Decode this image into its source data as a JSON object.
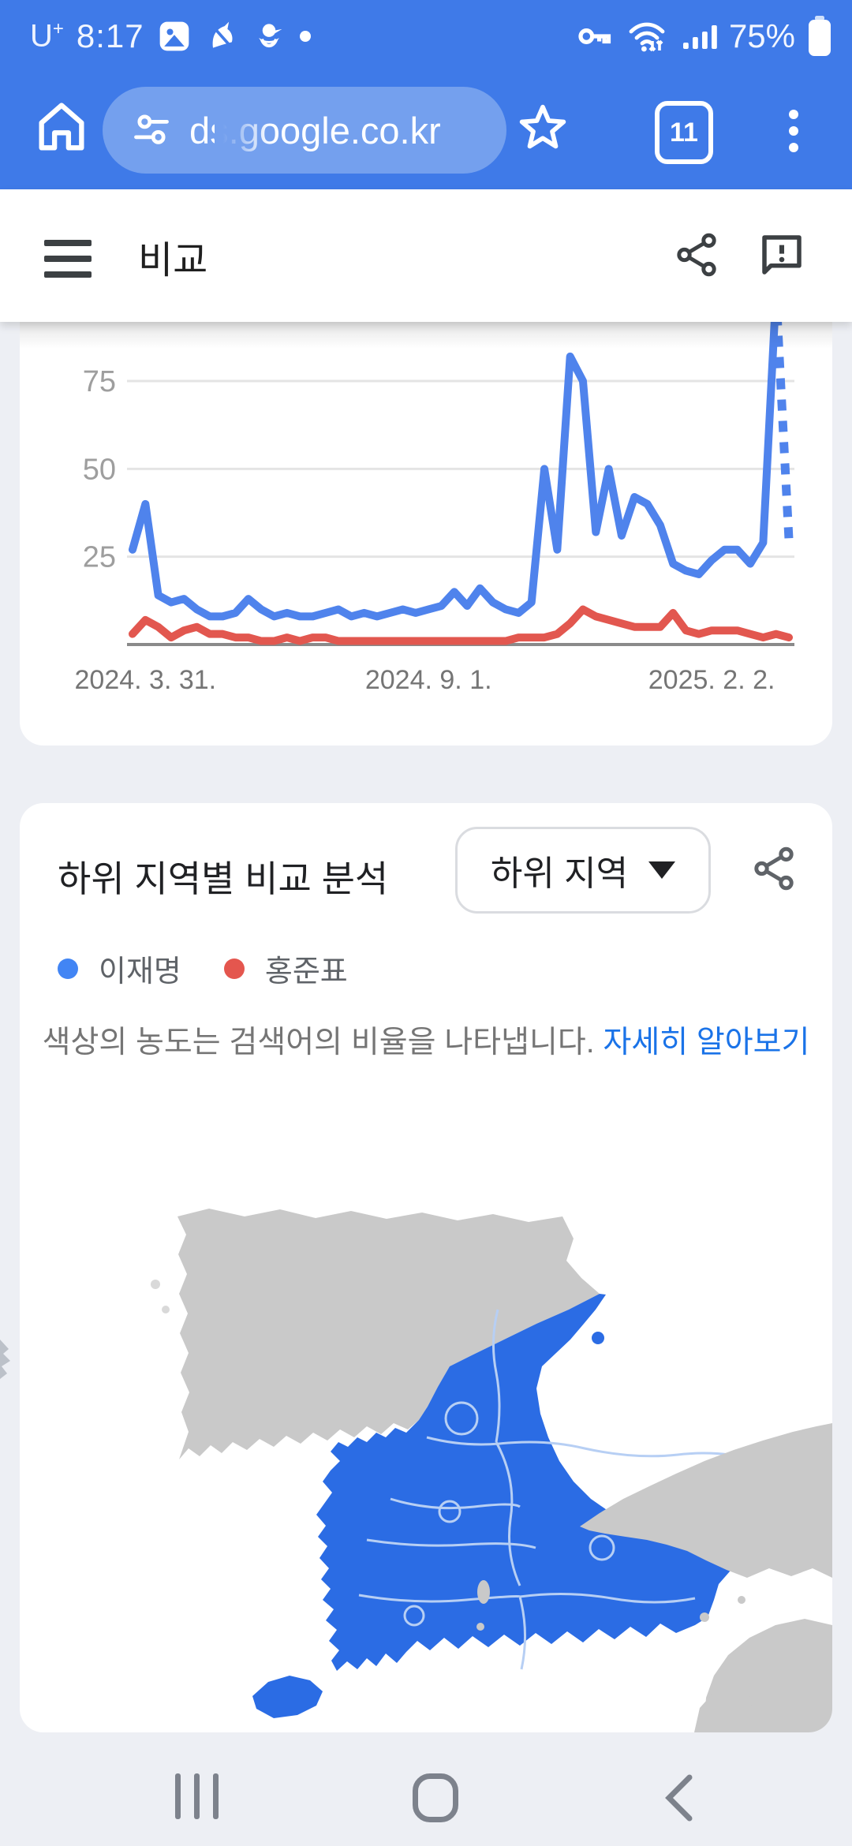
{
  "status_bar": {
    "carrier": "U+",
    "time": "8:17",
    "battery_percent": "75%",
    "left_icons": [
      "gallery-icon",
      "unicorn-icon",
      "duck-icon",
      "notification-dot"
    ],
    "right_icons": [
      "key-icon",
      "wifi-icon",
      "signal-icon",
      "battery-icon"
    ]
  },
  "browser": {
    "url_visible": "ds.google.co.kr",
    "tab_count": "11",
    "toolbar_color": "#3f7ae8",
    "pill_color": "#74a0ee"
  },
  "page_header": {
    "title": "비교"
  },
  "chart_data": {
    "type": "line",
    "x_unit": "week",
    "x_start_label": "2024. 3. 31.",
    "x_tick_labels": [
      {
        "label": "2024. 3. 31.",
        "index": 1
      },
      {
        "label": "2024. 9. 1.",
        "index": 23
      },
      {
        "label": "2025. 2. 2.",
        "index": 45
      }
    ],
    "ylim": [
      0,
      100
    ],
    "yticks": [
      25,
      50,
      75
    ],
    "grid": true,
    "note": "final data point partial - drawn dashed",
    "series": [
      {
        "name": "이재명",
        "color": "#4f83ec",
        "last_segment_dashed": true,
        "values": [
          27,
          40,
          14,
          12,
          13,
          10,
          8,
          8,
          9,
          13,
          10,
          8,
          9,
          8,
          8,
          9,
          10,
          8,
          9,
          8,
          9,
          10,
          9,
          10,
          11,
          15,
          11,
          16,
          12,
          10,
          9,
          12,
          50,
          27,
          82,
          75,
          32,
          50,
          31,
          42,
          40,
          34,
          23,
          21,
          20,
          24,
          27,
          27,
          23,
          29,
          100,
          30
        ]
      },
      {
        "name": "홍준표",
        "color": "#e2574f",
        "last_segment_dashed": false,
        "values": [
          3,
          7,
          5,
          2,
          4,
          5,
          3,
          3,
          2,
          2,
          1,
          1,
          2,
          1,
          2,
          2,
          1,
          1,
          1,
          1,
          1,
          1,
          1,
          1,
          1,
          1,
          1,
          1,
          1,
          1,
          2,
          2,
          2,
          3,
          6,
          10,
          8,
          7,
          6,
          5,
          5,
          5,
          9,
          4,
          3,
          4,
          4,
          4,
          3,
          2,
          3,
          2
        ]
      }
    ],
    "axis_color": "#8a8a8a",
    "gridline_color": "#e4e4e4",
    "tick_label_color": "#9e9e9e",
    "x_label_color": "#757575"
  },
  "region_card": {
    "title": "하위 지역별 비교 분석",
    "dropdown_label": "하위 지역",
    "legend": [
      {
        "label": "이재명",
        "color": "#4285f4"
      },
      {
        "label": "홍준표",
        "color": "#e4564e"
      }
    ],
    "caption": "색상의 농도는 검색어의 비율을 나타냅니다.",
    "learn_more_label": "자세히 알아보기",
    "learn_more_color": "#1a73e8",
    "map": {
      "highlight_color": "#2b6ce4",
      "neighbor_color": "#c9c9c9",
      "region_border_color": "#b7cff4",
      "sea_color": "#ffffff"
    }
  },
  "nav_bar": {
    "icons": [
      "recents-icon",
      "home-icon",
      "back-icon"
    ]
  }
}
